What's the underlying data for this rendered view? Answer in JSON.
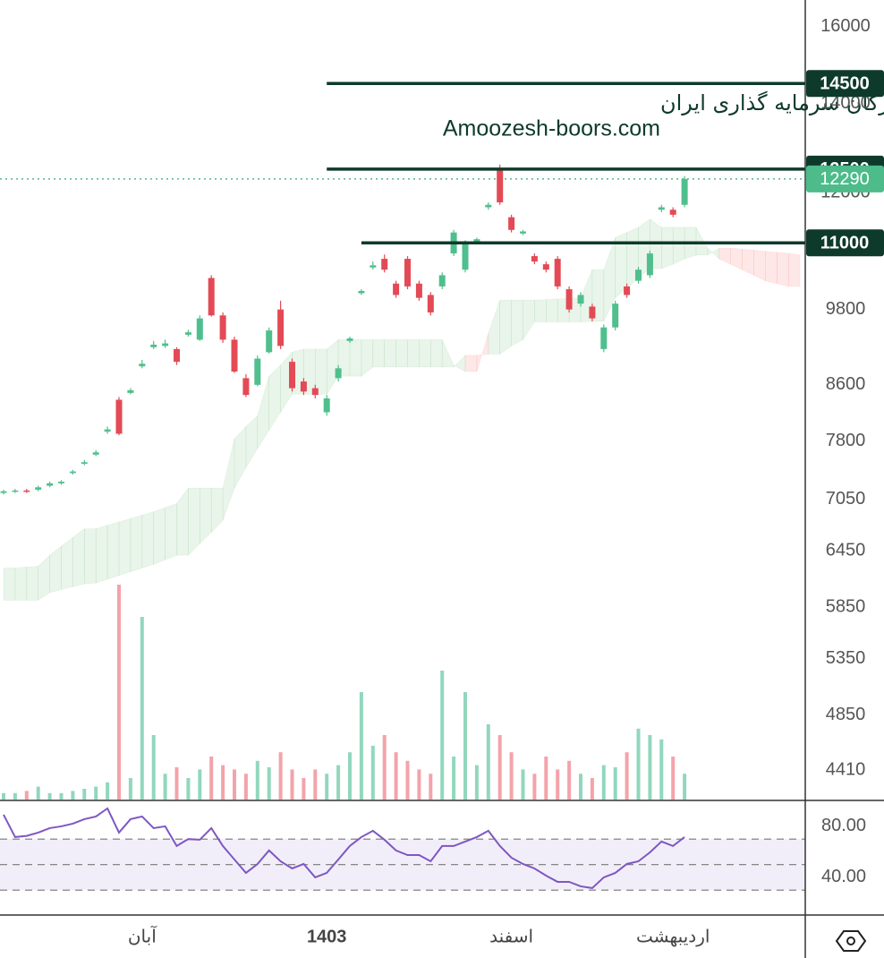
{
  "chart_data": {
    "type": "candlestick",
    "annotation": [
      "انجمن خبرگان سرمایه گذاری ایران",
      "Amoozesh-boors.com"
    ],
    "categories": [
      null,
      null,
      null,
      null,
      null,
      null,
      null,
      null,
      null,
      null,
      null,
      null,
      "آبان",
      null,
      null,
      null,
      null,
      null,
      null,
      null,
      null,
      null,
      null,
      null,
      null,
      null,
      null,
      null,
      "1403",
      null,
      null,
      null,
      null,
      null,
      null,
      null,
      null,
      null,
      null,
      null,
      null,
      null,
      null,
      null,
      "اسفند",
      null,
      null,
      null,
      null,
      null,
      null,
      null,
      null,
      null,
      null,
      null,
      null,
      null,
      "اردیبهشت",
      null
    ],
    "open": [
      7130,
      7150,
      7160,
      7170,
      7220,
      7250,
      7380,
      7500,
      7620,
      7930,
      8380,
      8480,
      8880,
      9180,
      9200,
      9150,
      9380,
      9300,
      10350,
      9700,
      9300,
      8700,
      8600,
      9100,
      9800,
      8950,
      8650,
      8550,
      8200,
      8700,
      9280,
      10080,
      10540,
      10700,
      10250,
      10700,
      10250,
      10050,
      10200,
      10800,
      10500,
      11030,
      11700,
      12500,
      11500,
      11180,
      10750,
      10600,
      10700,
      10150,
      9900,
      9850,
      9150,
      9500,
      10200,
      10300,
      10400,
      11650,
      11650,
      11750
    ],
    "high": [
      7170,
      7180,
      7180,
      7220,
      7270,
      7290,
      7420,
      7550,
      7680,
      8000,
      8420,
      8550,
      8980,
      9280,
      9300,
      9180,
      9460,
      9700,
      10400,
      9750,
      9350,
      8760,
      9050,
      9500,
      9950,
      9000,
      8700,
      8600,
      8450,
      8900,
      9350,
      10150,
      10650,
      10780,
      10300,
      10750,
      10300,
      10100,
      10450,
      11250,
      11050,
      11100,
      11800,
      12600,
      11550,
      11250,
      10800,
      10650,
      10750,
      10200,
      10100,
      9900,
      9550,
      9950,
      10250,
      10550,
      10850,
      11750,
      11700,
      12350
    ],
    "low": [
      7110,
      7130,
      7130,
      7150,
      7200,
      7230,
      7360,
      7480,
      7600,
      7900,
      7880,
      8460,
      8850,
      9150,
      9170,
      8900,
      9350,
      9280,
      9680,
      9250,
      8780,
      8420,
      8580,
      9080,
      9150,
      8500,
      8450,
      8400,
      8150,
      8650,
      9250,
      10050,
      10500,
      10450,
      10000,
      10150,
      9950,
      9700,
      10150,
      10750,
      10450,
      11000,
      11650,
      11750,
      11200,
      11150,
      10600,
      10450,
      10150,
      9750,
      9850,
      9600,
      9100,
      9450,
      10000,
      10250,
      10350,
      11600,
      11500,
      11700
    ],
    "close": [
      7150,
      7160,
      7150,
      7200,
      7250,
      7270,
      7400,
      7520,
      7650,
      7960,
      7900,
      8520,
      8920,
      9220,
      9240,
      8950,
      9420,
      9650,
      9700,
      9300,
      8800,
      8450,
      9000,
      9450,
      9200,
      8550,
      8500,
      8450,
      8400,
      8850,
      9320,
      10120,
      10580,
      10500,
      10050,
      10200,
      10000,
      9750,
      10400,
      11200,
      11000,
      11070,
      11750,
      11800,
      11250,
      11220,
      10650,
      10500,
      10200,
      9800,
      10050,
      9650,
      9500,
      9900,
      10050,
      10500,
      10800,
      11700,
      11550,
      12290
    ],
    "up_color": "#4fbf8d",
    "down_color": "#e34a55",
    "ylim": [
      4190,
      16760
    ],
    "log_y": true,
    "yticks": [
      16000,
      14000,
      12000,
      9800,
      8600,
      7800,
      7050,
      6450,
      5850,
      5350,
      4850,
      4410
    ],
    "levels": [
      {
        "value": 14500,
        "start": 28
      },
      {
        "value": 12500,
        "start": 28
      },
      {
        "value": 11000,
        "start": 31
      }
    ],
    "level_color": "#0e3a2b",
    "last_price": 12290,
    "last_color": "#4dbb8a",
    "volume": {
      "values": [
        3,
        3,
        4,
        6,
        3,
        3,
        4,
        5,
        6,
        8,
        100,
        10,
        85,
        30,
        12,
        15,
        10,
        14,
        20,
        16,
        14,
        12,
        18,
        15,
        22,
        14,
        10,
        14,
        12,
        16,
        22,
        50,
        25,
        30,
        22,
        18,
        14,
        12,
        60,
        20,
        50,
        16,
        35,
        30,
        22,
        14,
        12,
        20,
        14,
        18,
        12,
        10,
        16,
        15,
        22,
        33,
        30,
        28,
        20,
        12
      ],
      "ylim": [
        0,
        100
      ],
      "up_color": "#92d7bd",
      "down_color": "#f3a3aa"
    },
    "cloud": {
      "span_a": [
        6260,
        6260,
        6270,
        6280,
        6400,
        6500,
        6600,
        6700,
        6700,
        6740,
        6780,
        6820,
        6860,
        6900,
        6950,
        7000,
        7190,
        7190,
        7190,
        7190,
        7830,
        8000,
        8150,
        8730,
        8900,
        9100,
        9150,
        9150,
        9150,
        9300,
        9300,
        9300,
        9300,
        9300,
        9300,
        9300,
        9300,
        9300,
        9300,
        8900,
        8800,
        8800,
        9400,
        9960,
        9960,
        9960,
        9960,
        9970,
        9980,
        9990,
        10000,
        10500,
        10500,
        11100,
        11200,
        11300,
        11460,
        11300,
        11300,
        11300,
        11300,
        10900,
        10700,
        10600,
        10500,
        10400,
        10300,
        10250,
        10200,
        10200
      ],
      "span_b": [
        5920,
        5920,
        5920,
        5920,
        6000,
        6030,
        6060,
        6090,
        6100,
        6140,
        6180,
        6220,
        6260,
        6300,
        6350,
        6400,
        6400,
        6530,
        6660,
        6800,
        7190,
        7450,
        7700,
        7950,
        8200,
        8460,
        8460,
        8460,
        8460,
        8730,
        8730,
        8730,
        8870,
        8870,
        8870,
        8870,
        8870,
        8870,
        8870,
        8870,
        9050,
        9050,
        9070,
        9070,
        9200,
        9300,
        9590,
        9590,
        9590,
        9590,
        9590,
        9600,
        9600,
        10000,
        10170,
        10350,
        10520,
        10520,
        10600,
        10700,
        10770,
        10770,
        10900,
        10900,
        10880,
        10860,
        10840,
        10820,
        10800,
        10770
      ],
      "up_color": "rgba(76,175,80,0.12)",
      "down_color": "rgba(244,67,54,0.12)"
    },
    "rsi": {
      "values": [
        89.1,
        71.6,
        72.5,
        75.1,
        78.6,
        80.0,
        82.1,
        85.6,
        87.7,
        94.0,
        75.1,
        85.6,
        87.7,
        78.6,
        80.0,
        64.6,
        70.0,
        69.5,
        78.6,
        64.6,
        54.0,
        43.5,
        50.5,
        61.1,
        52.6,
        47.0,
        50.5,
        40.0,
        43.5,
        54.0,
        64.6,
        71.6,
        76.5,
        69.5,
        61.1,
        57.5,
        57.5,
        52.6,
        64.6,
        64.6,
        68.1,
        71.6,
        76.5,
        64.6,
        55.4,
        50.5,
        47.0,
        41.4,
        36.5,
        36.5,
        33.0,
        31.6,
        40.0,
        43.5,
        50.5,
        52.6,
        59.6,
        68.1,
        64.6,
        71.6
      ],
      "ylim": [
        10.5,
        99.6
      ],
      "yticks": [
        {
          "value": 80,
          "label": "80.00"
        },
        {
          "value": 40,
          "label": "40.00"
        }
      ],
      "bands": [
        70,
        50,
        30
      ],
      "color": "#7e57c2",
      "band_color": "rgba(126,87,194,0.10)"
    }
  }
}
